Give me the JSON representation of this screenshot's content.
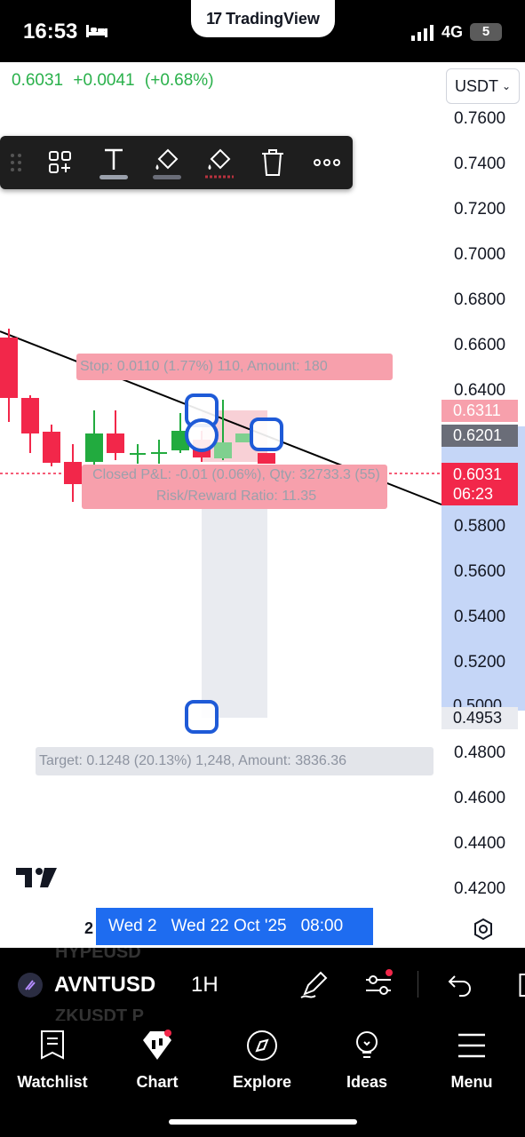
{
  "status_bar": {
    "time": "16:53",
    "carrier_app": "TradingView",
    "network": "4G",
    "battery": "5"
  },
  "header": {
    "last_price": "0.6031",
    "change": "+0.0041",
    "change_pct": "(+0.68%)",
    "currency": "USDT"
  },
  "toolbar": {
    "items": [
      "drag-handle-icon",
      "template-icon",
      "text-icon",
      "fill-color-icon",
      "line-color-icon",
      "delete-icon",
      "more-icon"
    ]
  },
  "price_axis": {
    "labels": [
      "0.7600",
      "0.7400",
      "0.7200",
      "0.7000",
      "0.6800",
      "0.6600",
      "0.6400",
      "0.5800",
      "0.5600",
      "0.5400",
      "0.5200",
      "0.4800",
      "0.4600",
      "0.4400",
      "0.4200"
    ],
    "tags": {
      "stop": "0.6311",
      "entry": "0.6201",
      "current": "0.6031",
      "countdown": "06:23",
      "target": "0.4953",
      "partial": "0.5000"
    }
  },
  "position": {
    "stop_label": "Stop: 0.0110 (1.77%) 110, Amount: 180",
    "pnl_label": "Closed P&L: -0.01 (0.06%), Qty: 32733.3 (55)",
    "ratio_label": "Risk/Reward Ratio: 11.35",
    "target_label": "Target: 0.1248 (20.13%) 1,248, Amount: 3836.36"
  },
  "time_axis": {
    "left_partial": "2",
    "crosshair_date_partial": "Wed 2",
    "crosshair_date": "Wed 22 Oct '25",
    "crosshair_time": "08:00"
  },
  "symbol_bar": {
    "symbol": "AVNTUSD",
    "timeframe": "1H",
    "ghost_top": "HYPEUSD",
    "ghost_bottom": "ZKUSDT P"
  },
  "tabs": [
    {
      "label": "Watchlist",
      "icon": "watchlist-icon"
    },
    {
      "label": "Chart",
      "icon": "chart-icon"
    },
    {
      "label": "Explore",
      "icon": "compass-icon"
    },
    {
      "label": "Ideas",
      "icon": "lightbulb-icon"
    },
    {
      "label": "Menu",
      "icon": "menu-icon"
    }
  ],
  "colors": {
    "up": "#22ab3f",
    "down": "#f2274a",
    "accent": "#1e6cf0",
    "stop_zone": "#f8b4bd",
    "target_zone": "#e9ebf0"
  }
}
